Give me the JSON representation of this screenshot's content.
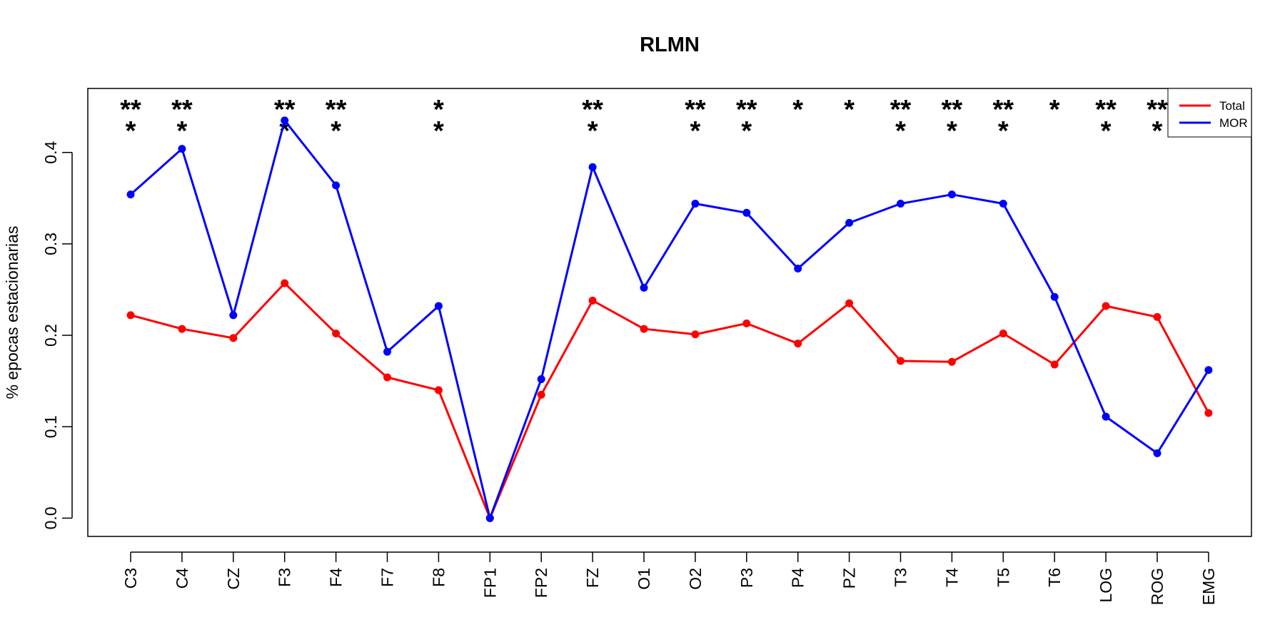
{
  "chart_data": {
    "type": "line",
    "title": "RLMN",
    "xlabel": "",
    "ylabel": "% epocas estacionarias",
    "ylim": [
      -0.02,
      0.47
    ],
    "yticks": [
      "0.0",
      "0.1",
      "0.2",
      "0.3",
      "0.4"
    ],
    "yticks_values": [
      0.0,
      0.1,
      0.2,
      0.3,
      0.4
    ],
    "categories": [
      "C3",
      "C4",
      "CZ",
      "F3",
      "F4",
      "F7",
      "F8",
      "FP1",
      "FP2",
      "FZ",
      "O1",
      "O2",
      "P3",
      "P4",
      "PZ",
      "T3",
      "T4",
      "T5",
      "T6",
      "LOG",
      "ROG",
      "EMG"
    ],
    "series": [
      {
        "name": "Total",
        "color": "#ff0000",
        "values": [
          0.222,
          0.207,
          0.197,
          0.257,
          0.202,
          0.154,
          0.14,
          0.0,
          0.135,
          0.238,
          0.207,
          0.201,
          0.213,
          0.191,
          0.235,
          0.172,
          0.171,
          0.202,
          0.168,
          0.232,
          0.22,
          0.115
        ]
      },
      {
        "name": "MOR",
        "color": "#0000ff",
        "values": [
          0.354,
          0.404,
          0.222,
          0.435,
          0.364,
          0.182,
          0.232,
          0.0,
          0.152,
          0.384,
          0.252,
          0.344,
          0.334,
          0.273,
          0.323,
          0.344,
          0.354,
          0.344,
          0.242,
          0.111,
          0.071,
          0.162
        ]
      }
    ],
    "significance": [
      "***",
      "***",
      "",
      "***",
      "***",
      "",
      "**",
      "",
      "",
      "***",
      "",
      "***",
      "***",
      "*",
      "*",
      "***",
      "***",
      "***",
      "*",
      "***",
      "***",
      ""
    ],
    "legend": {
      "position": "top-right",
      "entries": [
        "Total",
        "MOR"
      ]
    },
    "grid": false
  }
}
